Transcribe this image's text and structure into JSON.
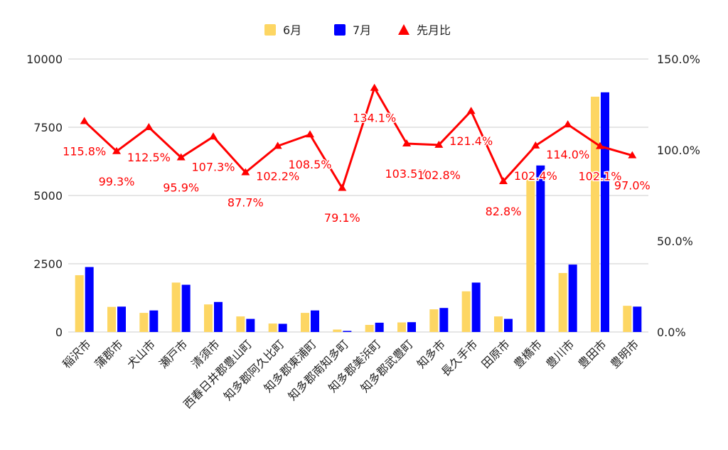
{
  "chart_data": {
    "type": "bar",
    "title": "",
    "xlabel": "",
    "ylabel": "",
    "categories": [
      "稲沢市",
      "蒲郡市",
      "犬山市",
      "瀬戸市",
      "清須市",
      "西春日井郡豊山町",
      "知多郡阿久比町",
      "知多郡東浦町",
      "知多郡南知多町",
      "知多郡美浜町",
      "知多郡武豊町",
      "知多市",
      "長久手市",
      "田原市",
      "豊橋市",
      "豊川市",
      "豊田市",
      "豊明市"
    ],
    "series": [
      {
        "name": "6月",
        "kind": "bar",
        "axis": "left",
        "color": "#fdd663",
        "values": [
          2080,
          920,
          700,
          1810,
          1010,
          570,
          310,
          700,
          90,
          260,
          350,
          830,
          1490,
          570,
          5600,
          2160,
          8620,
          960
        ]
      },
      {
        "name": "7月",
        "kind": "bar",
        "axis": "left",
        "color": "#0000ff",
        "values": [
          2380,
          930,
          790,
          1730,
          1100,
          480,
          300,
          790,
          40,
          340,
          360,
          880,
          1810,
          480,
          6100,
          2470,
          8780,
          930
        ]
      },
      {
        "name": "先月比",
        "kind": "line",
        "axis": "right",
        "color": "#ff0000",
        "values": [
          115.8,
          99.3,
          112.5,
          95.9,
          107.3,
          87.7,
          102.2,
          108.5,
          79.1,
          134.1,
          103.5,
          102.8,
          121.4,
          82.8,
          102.4,
          114.0,
          102.1,
          97.0
        ],
        "labels": [
          "115.8%",
          "99.3%",
          "112.5%",
          "95.9%",
          "107.3%",
          "87.7%",
          "102.2%",
          "108.5%",
          "79.1%",
          "134.1%",
          "103.5%",
          "102.8%",
          "121.4%",
          "82.8%",
          "102.4%",
          "114.0%",
          "102.1%",
          "97.0%"
        ]
      }
    ],
    "y_left": {
      "ylim": [
        0,
        10000
      ],
      "ticks": [
        0,
        2500,
        5000,
        7500,
        10000
      ],
      "tick_labels": [
        "0",
        "2500",
        "5000",
        "7500",
        "10000"
      ]
    },
    "y_right": {
      "ylim": [
        0,
        150
      ],
      "ticks": [
        0,
        50,
        100,
        150
      ],
      "tick_labels": [
        "0.0%",
        "50.0%",
        "100.0%",
        "150.0%"
      ]
    },
    "legend": {
      "position": "top",
      "items": [
        "6月",
        "7月",
        "先月比"
      ]
    },
    "grid": true
  }
}
